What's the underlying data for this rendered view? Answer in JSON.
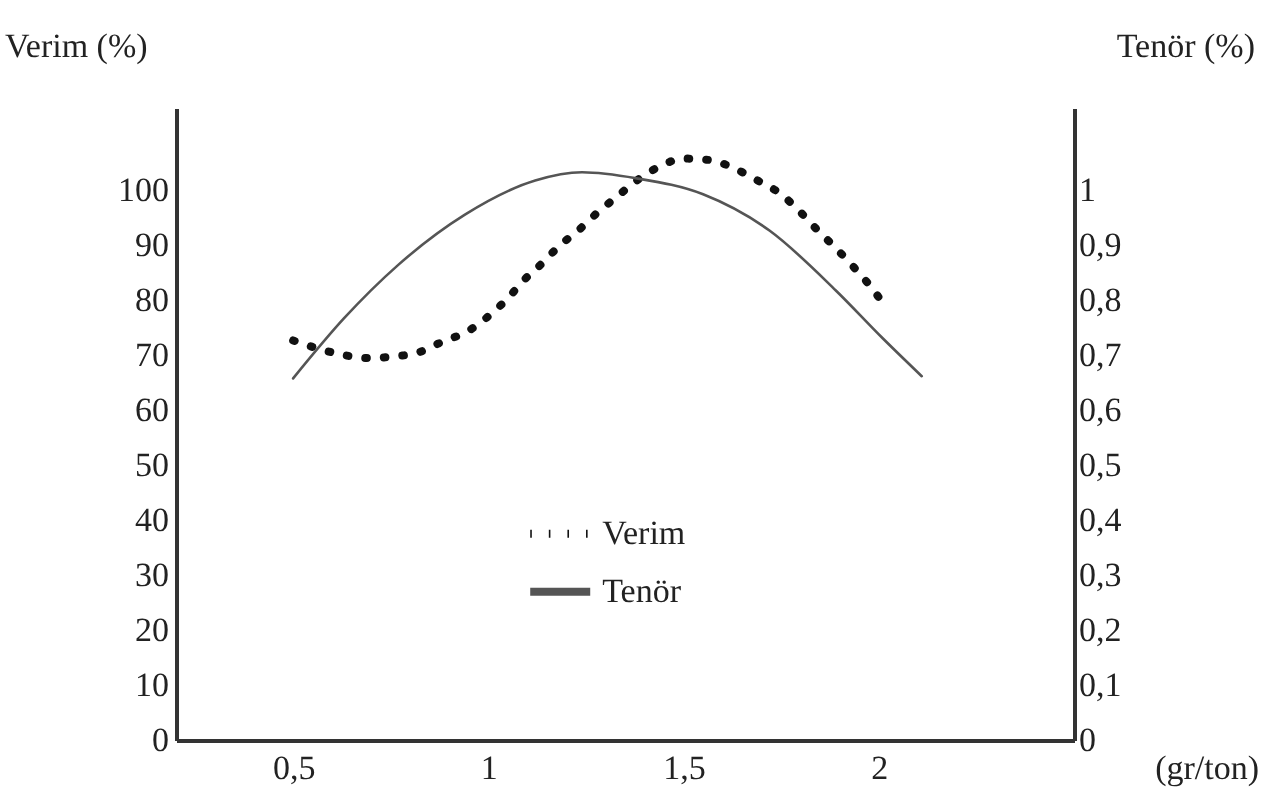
{
  "chart_data": {
    "type": "line",
    "xlabel": "(gr/ton)",
    "ylabel": "Verim (%)",
    "y2label": "Tenör (%)",
    "xlim": [
      0.2,
      2.5
    ],
    "xticks": [
      {
        "value": 0.5,
        "label": "0,5"
      },
      1,
      {
        "value": 1.5,
        "label": "1,5"
      },
      2
    ],
    "ylim": [
      0,
      115
    ],
    "yticks": [
      0,
      10,
      20,
      30,
      40,
      50,
      60,
      70,
      80,
      90,
      100
    ],
    "y2lim": [
      0,
      1.15
    ],
    "y2ticks": [
      0,
      {
        "value": 0.1,
        "label": "0,1"
      },
      {
        "value": 0.2,
        "label": "0,2"
      },
      {
        "value": 0.3,
        "label": "0,3"
      },
      {
        "value": 0.4,
        "label": "0,4"
      },
      {
        "value": 0.5,
        "label": "0,5"
      },
      {
        "value": 0.6,
        "label": "0,6"
      },
      {
        "value": 0.7,
        "label": "0,7"
      },
      {
        "value": 0.8,
        "label": "0,8"
      },
      {
        "value": 0.9,
        "label": "0,9"
      },
      1
    ],
    "grid": false,
    "legend": "bottom",
    "series": [
      {
        "name": "Verim",
        "color": "#111111",
        "line_style": "dotted",
        "x": [
          0.5,
          0.56,
          0.62,
          0.69,
          0.76,
          0.82,
          0.88,
          0.95,
          1.0,
          1.05,
          1.09,
          1.14,
          1.18,
          1.23,
          1.28,
          1.33,
          1.38,
          1.44,
          1.5,
          1.57,
          1.63,
          1.69,
          1.75,
          1.8,
          1.84,
          1.89,
          1.93,
          1.97,
          2.01
        ],
        "values": [
          72.7,
          71.3,
          70.2,
          69.5,
          69.8,
          70.5,
          72.4,
          74.5,
          77.1,
          80.4,
          83.6,
          86.9,
          89.8,
          92.7,
          96,
          98.9,
          101.8,
          104.4,
          105.8,
          105.5,
          104,
          101.8,
          99.3,
          96,
          93,
          89.5,
          86.5,
          83.3,
          79.6
        ]
      },
      {
        "name": "Tenör",
        "color": "#555555",
        "line_style": "solid",
        "axis": "y2",
        "x": [
          0.5,
          0.63,
          0.77,
          0.94,
          1.12,
          1.24,
          1.38,
          1.55,
          1.72,
          1.89,
          2.01,
          2.11
        ],
        "values": [
          0.658,
          0.767,
          0.865,
          0.956,
          1.018,
          1.033,
          1.022,
          0.993,
          0.927,
          0.818,
          0.731,
          0.662
        ]
      }
    ]
  }
}
